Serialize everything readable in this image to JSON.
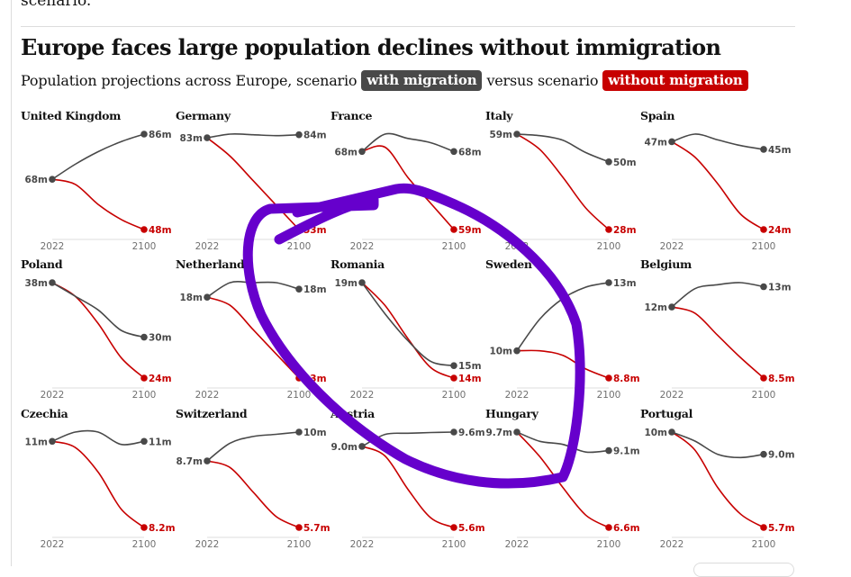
{
  "article": {
    "previous_text": "scenario.",
    "title": "Europe faces large population declines without immigration",
    "subtitle_prefix": "Population projections across Europe, scenario",
    "subtitle_with": "with migration",
    "subtitle_mid": "versus scenario",
    "subtitle_without": "without migration"
  },
  "colors": {
    "with_migration": "#494949",
    "without_migration": "#c70000",
    "annotation": "#6600cc",
    "axis": "#eeeeee"
  },
  "chart_data": {
    "type": "line",
    "title": "Europe faces large population declines without immigration",
    "subtitle": "Population projections across Europe, scenario with migration versus scenario without migration",
    "x": [
      2022,
      2100
    ],
    "xlabels": [
      "2022",
      "2100"
    ],
    "unit": "millions",
    "legend": [
      {
        "name": "with migration",
        "color": "#494949"
      },
      {
        "name": "without migration",
        "color": "#c70000"
      }
    ],
    "panels": [
      {
        "country": "United Kingdom",
        "start": 68,
        "start_label": "68m",
        "with_end": 86,
        "with_label": "86m",
        "without_end": 48,
        "without_label": "48m",
        "with_path": [
          68,
          74,
          79,
          83,
          86
        ],
        "without_path": [
          68,
          66,
          58,
          52,
          48
        ]
      },
      {
        "country": "Germany",
        "start": 83,
        "start_label": "83m",
        "with_end": 84,
        "with_label": "84m",
        "without_end": 53,
        "without_label": "53m",
        "with_path": [
          83,
          84.2,
          84,
          83.7,
          84
        ],
        "without_path": [
          83,
          77,
          69,
          61,
          53
        ]
      },
      {
        "country": "France",
        "start": 68,
        "start_label": "68m",
        "with_end": 68,
        "with_label": "68m",
        "without_end": 59,
        "without_label": "59m",
        "with_path": [
          68,
          70,
          69.5,
          69,
          68
        ],
        "without_path": [
          68,
          68.5,
          65,
          62,
          59
        ]
      },
      {
        "country": "Italy",
        "start": 59,
        "start_label": "59m",
        "with_end": 50,
        "with_label": "50m",
        "without_end": 28,
        "without_label": "28m",
        "with_path": [
          59,
          58.5,
          57,
          53,
          50
        ],
        "without_path": [
          59,
          54,
          45,
          35,
          28
        ]
      },
      {
        "country": "Spain",
        "start": 47,
        "start_label": "47m",
        "with_end": 45,
        "with_label": "45m",
        "without_end": 24,
        "without_label": "24m",
        "with_path": [
          47,
          49,
          47.5,
          46,
          45
        ],
        "without_path": [
          47,
          43,
          36,
          28,
          24
        ]
      },
      {
        "country": "Poland",
        "start": 38,
        "start_label": "38m",
        "with_end": 30,
        "with_label": "30m",
        "without_end": 24,
        "without_label": "24m",
        "with_path": [
          38,
          36,
          34,
          31,
          30
        ],
        "without_path": [
          38,
          36,
          32,
          27,
          24
        ]
      },
      {
        "country": "Netherlands",
        "start": 18,
        "start_label": "18m",
        "with_end": 18,
        "with_label": "18m",
        "without_end": 13,
        "without_label": "13m",
        "with_path": [
          18,
          18.9,
          18.9,
          18.9,
          18.5
        ],
        "without_path": [
          18,
          17.5,
          16,
          14.5,
          13
        ]
      },
      {
        "country": "Romania",
        "start": 19,
        "start_label": "19m",
        "with_end": 15,
        "with_label": "15m",
        "without_end": 14,
        "without_label": "14m",
        "with_path": [
          19,
          17.5,
          16.2,
          15.2,
          15
        ],
        "without_path": [
          19,
          17.9,
          16.3,
          14.9,
          14.4
        ]
      },
      {
        "country": "Sweden",
        "start": 10,
        "start_label": "10m",
        "with_end": 13,
        "with_label": "13m",
        "without_end": 8.8,
        "without_label": "8.8m",
        "with_path": [
          10,
          11.4,
          12.3,
          12.8,
          13
        ],
        "without_path": [
          10,
          10,
          9.8,
          9.2,
          8.8
        ]
      },
      {
        "country": "Belgium",
        "start": 12,
        "start_label": "12m",
        "with_end": 13,
        "with_label": "13m",
        "without_end": 8.5,
        "without_label": "8.5m",
        "with_path": [
          12,
          12.9,
          13.1,
          13.2,
          13
        ],
        "without_path": [
          12,
          11.7,
          10.6,
          9.5,
          8.5
        ]
      },
      {
        "country": "Czechia",
        "start": 11,
        "start_label": "11m",
        "with_end": 11,
        "with_label": "11m",
        "without_end": 8.2,
        "without_label": "8.2m",
        "with_path": [
          11,
          11.3,
          11.3,
          10.9,
          11
        ],
        "without_path": [
          11,
          10.8,
          10,
          8.8,
          8.2
        ]
      },
      {
        "country": "Switzerland",
        "start": 8.7,
        "start_label": "8.7m",
        "with_end": 10,
        "with_label": "10m",
        "without_end": 5.7,
        "without_label": "5.7m",
        "with_path": [
          8.7,
          9.5,
          9.8,
          9.9,
          10
        ],
        "without_path": [
          8.7,
          8.4,
          7.3,
          6.2,
          5.7
        ]
      },
      {
        "country": "Austria",
        "start": 9.0,
        "start_label": "9.0m",
        "with_end": 9.6,
        "with_label": "9.6m",
        "without_end": 5.6,
        "without_label": "5.6m",
        "with_path": [
          9.0,
          9.5,
          9.55,
          9.58,
          9.6
        ],
        "without_path": [
          9.0,
          8.6,
          7.2,
          6.0,
          5.6
        ]
      },
      {
        "country": "Hungary",
        "start": 9.7,
        "start_label": "9.7m",
        "with_end": 9.1,
        "with_label": "9.1m",
        "without_end": 6.6,
        "without_label": "6.6m",
        "with_path": [
          9.7,
          9.4,
          9.3,
          9.05,
          9.1
        ],
        "without_path": [
          9.7,
          8.9,
          7.9,
          7.0,
          6.6
        ]
      },
      {
        "country": "Portugal",
        "start": 10,
        "start_label": "10m",
        "with_end": 9.0,
        "with_label": "9.0m",
        "without_end": 5.7,
        "without_label": "5.7m",
        "with_path": [
          10,
          9.6,
          9.0,
          8.85,
          9.0
        ],
        "without_path": [
          10,
          9.2,
          7.5,
          6.3,
          5.7
        ]
      }
    ],
    "grid": false,
    "layout": "small-multiples 5x3"
  }
}
